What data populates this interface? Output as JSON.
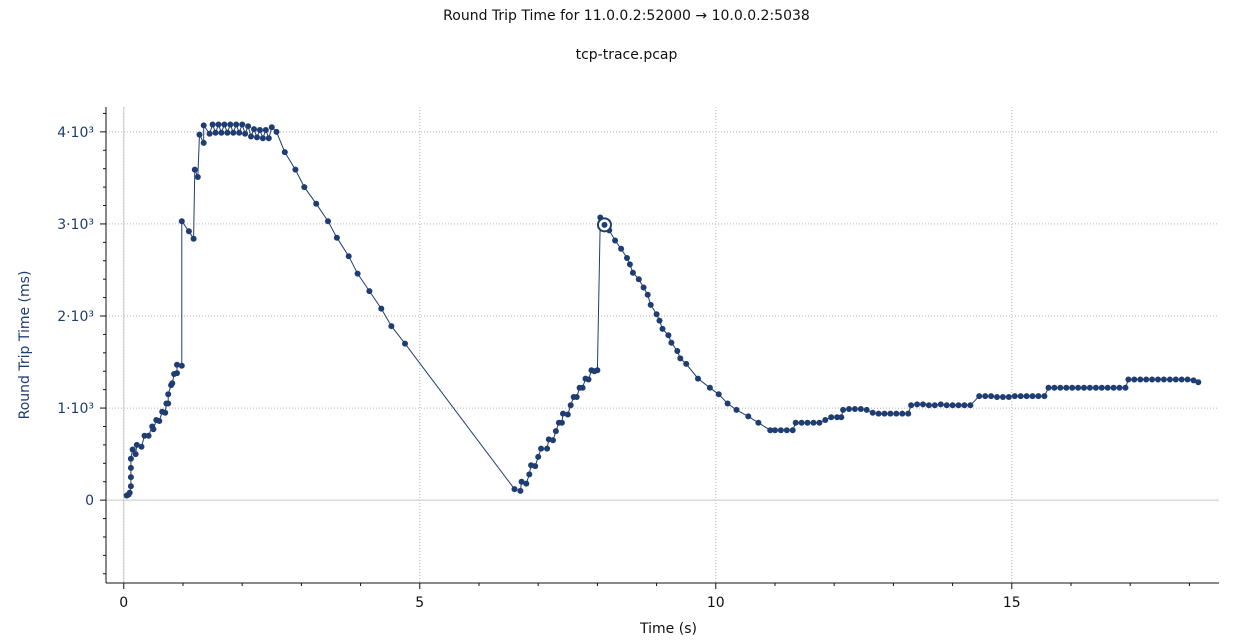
{
  "page": {
    "title": "Round Trip Time for 11.0.0.2:52000 → 10.0.0.2:5038",
    "subtitle": "tcp-trace.pcap"
  },
  "chart_data": {
    "type": "scatter",
    "xlabel": "Time (s)",
    "ylabel": "Round Trip Time (ms)",
    "xlim": [
      -0.3,
      18.5
    ],
    "ylim": [
      -900,
      4270
    ],
    "x_ticks": [
      {
        "value": 0,
        "label": "0"
      },
      {
        "value": 5,
        "label": "5"
      },
      {
        "value": 10,
        "label": "10"
      },
      {
        "value": 15,
        "label": "15"
      }
    ],
    "y_ticks": [
      {
        "value": 0,
        "label": "0"
      },
      {
        "value": 1000,
        "label": "1·10³"
      },
      {
        "value": 2000,
        "label": "2·10³"
      },
      {
        "value": 3000,
        "label": "3·10³"
      },
      {
        "value": 4000,
        "label": "4·10³"
      }
    ],
    "grid": true,
    "colors": {
      "series": "#1f3d73",
      "ytick": "#1f3d73",
      "axis": "#111111",
      "grid": "#b5b5b5"
    },
    "series": [
      {
        "points": [
          [
            0.05,
            50
          ],
          [
            0.08,
            60
          ],
          [
            0.1,
            80
          ],
          [
            0.12,
            150
          ],
          [
            0.12,
            250
          ],
          [
            0.12,
            350
          ],
          [
            0.12,
            450
          ],
          [
            0.15,
            550
          ],
          [
            0.2,
            500
          ],
          [
            0.22,
            600
          ],
          [
            0.3,
            580
          ],
          [
            0.35,
            700
          ],
          [
            0.42,
            700
          ],
          [
            0.48,
            800
          ],
          [
            0.5,
            770
          ],
          [
            0.55,
            870
          ],
          [
            0.6,
            860
          ],
          [
            0.65,
            960
          ],
          [
            0.7,
            950
          ],
          [
            0.72,
            1050
          ],
          [
            0.75,
            1050
          ],
          [
            0.75,
            1150
          ],
          [
            0.8,
            1250
          ],
          [
            0.82,
            1270
          ],
          [
            0.85,
            1370
          ],
          [
            0.9,
            1380
          ],
          [
            0.9,
            1470
          ],
          [
            0.98,
            1460
          ],
          [
            0.98,
            3030
          ],
          [
            1.1,
            2920
          ],
          [
            1.18,
            2840
          ],
          [
            1.2,
            3590
          ],
          [
            1.25,
            3510
          ],
          [
            1.28,
            3970
          ],
          [
            1.35,
            3880
          ],
          [
            1.35,
            4070
          ],
          [
            1.45,
            3980
          ],
          [
            1.5,
            4080
          ],
          [
            1.55,
            3990
          ],
          [
            1.6,
            4080
          ],
          [
            1.65,
            3990
          ],
          [
            1.7,
            4080
          ],
          [
            1.75,
            3990
          ],
          [
            1.8,
            4080
          ],
          [
            1.85,
            3990
          ],
          [
            1.9,
            4080
          ],
          [
            1.95,
            3990
          ],
          [
            2.0,
            4080
          ],
          [
            2.05,
            3980
          ],
          [
            2.1,
            4060
          ],
          [
            2.15,
            3950
          ],
          [
            2.2,
            4030
          ],
          [
            2.25,
            3940
          ],
          [
            2.3,
            4020
          ],
          [
            2.35,
            3930
          ],
          [
            2.4,
            4020
          ],
          [
            2.45,
            3930
          ],
          [
            2.5,
            4050
          ],
          [
            2.58,
            4000
          ],
          [
            2.72,
            3780
          ],
          [
            2.9,
            3590
          ],
          [
            3.05,
            3400
          ],
          [
            3.25,
            3220
          ],
          [
            3.45,
            3030
          ],
          [
            3.6,
            2850
          ],
          [
            3.8,
            2650
          ],
          [
            3.95,
            2460
          ],
          [
            4.15,
            2270
          ],
          [
            4.35,
            2080
          ],
          [
            4.52,
            1890
          ],
          [
            4.75,
            1700
          ],
          [
            6.6,
            120
          ],
          [
            6.7,
            100
          ],
          [
            6.72,
            200
          ],
          [
            6.8,
            180
          ],
          [
            6.85,
            280
          ],
          [
            6.88,
            380
          ],
          [
            6.95,
            370
          ],
          [
            7.0,
            470
          ],
          [
            7.05,
            560
          ],
          [
            7.15,
            560
          ],
          [
            7.18,
            660
          ],
          [
            7.25,
            650
          ],
          [
            7.3,
            750
          ],
          [
            7.35,
            840
          ],
          [
            7.4,
            840
          ],
          [
            7.42,
            940
          ],
          [
            7.5,
            930
          ],
          [
            7.55,
            1030
          ],
          [
            7.6,
            1120
          ],
          [
            7.65,
            1120
          ],
          [
            7.7,
            1220
          ],
          [
            7.75,
            1220
          ],
          [
            7.8,
            1320
          ],
          [
            7.85,
            1310
          ],
          [
            7.9,
            1410
          ],
          [
            7.95,
            1400
          ],
          [
            8.0,
            1410
          ],
          [
            8.05,
            3070
          ],
          [
            8.12,
            2990
          ],
          [
            8.2,
            2930
          ],
          [
            8.3,
            2820
          ],
          [
            8.4,
            2730
          ],
          [
            8.5,
            2630
          ],
          [
            8.55,
            2560
          ],
          [
            8.6,
            2470
          ],
          [
            8.7,
            2400
          ],
          [
            8.78,
            2310
          ],
          [
            8.85,
            2230
          ],
          [
            8.9,
            2120
          ],
          [
            9.0,
            2020
          ],
          [
            9.05,
            1950
          ],
          [
            9.1,
            1860
          ],
          [
            9.2,
            1790
          ],
          [
            9.25,
            1710
          ],
          [
            9.35,
            1620
          ],
          [
            9.4,
            1540
          ],
          [
            9.5,
            1480
          ],
          [
            9.7,
            1320
          ],
          [
            9.9,
            1220
          ],
          [
            10.05,
            1150
          ],
          [
            10.2,
            1050
          ],
          [
            10.35,
            980
          ],
          [
            10.55,
            910
          ],
          [
            10.72,
            840
          ],
          [
            10.92,
            760
          ],
          [
            11.0,
            760
          ],
          [
            11.1,
            760
          ],
          [
            11.2,
            760
          ],
          [
            11.3,
            760
          ],
          [
            11.35,
            840
          ],
          [
            11.45,
            840
          ],
          [
            11.55,
            840
          ],
          [
            11.65,
            840
          ],
          [
            11.75,
            840
          ],
          [
            11.85,
            870
          ],
          [
            11.95,
            900
          ],
          [
            12.05,
            900
          ],
          [
            12.12,
            900
          ],
          [
            12.15,
            980
          ],
          [
            12.25,
            990
          ],
          [
            12.35,
            990
          ],
          [
            12.45,
            990
          ],
          [
            12.55,
            980
          ],
          [
            12.65,
            950
          ],
          [
            12.75,
            940
          ],
          [
            12.85,
            940
          ],
          [
            12.95,
            940
          ],
          [
            13.05,
            940
          ],
          [
            13.15,
            940
          ],
          [
            13.25,
            940
          ],
          [
            13.3,
            1030
          ],
          [
            13.4,
            1040
          ],
          [
            13.5,
            1040
          ],
          [
            13.6,
            1030
          ],
          [
            13.7,
            1030
          ],
          [
            13.8,
            1040
          ],
          [
            13.9,
            1030
          ],
          [
            14.0,
            1030
          ],
          [
            14.1,
            1030
          ],
          [
            14.2,
            1030
          ],
          [
            14.3,
            1030
          ],
          [
            14.45,
            1130
          ],
          [
            14.55,
            1130
          ],
          [
            14.65,
            1130
          ],
          [
            14.75,
            1120
          ],
          [
            14.85,
            1120
          ],
          [
            14.95,
            1120
          ],
          [
            15.05,
            1130
          ],
          [
            15.15,
            1130
          ],
          [
            15.25,
            1130
          ],
          [
            15.35,
            1130
          ],
          [
            15.45,
            1130
          ],
          [
            15.55,
            1130
          ],
          [
            15.62,
            1220
          ],
          [
            15.72,
            1220
          ],
          [
            15.82,
            1220
          ],
          [
            15.92,
            1220
          ],
          [
            16.02,
            1220
          ],
          [
            16.12,
            1220
          ],
          [
            16.22,
            1220
          ],
          [
            16.32,
            1220
          ],
          [
            16.42,
            1220
          ],
          [
            16.52,
            1220
          ],
          [
            16.62,
            1220
          ],
          [
            16.72,
            1220
          ],
          [
            16.82,
            1220
          ],
          [
            16.92,
            1220
          ],
          [
            16.97,
            1310
          ],
          [
            17.07,
            1310
          ],
          [
            17.17,
            1310
          ],
          [
            17.27,
            1310
          ],
          [
            17.37,
            1310
          ],
          [
            17.47,
            1310
          ],
          [
            17.57,
            1310
          ],
          [
            17.67,
            1310
          ],
          [
            17.77,
            1310
          ],
          [
            17.87,
            1310
          ],
          [
            17.97,
            1310
          ],
          [
            18.07,
            1300
          ],
          [
            18.15,
            1280
          ]
        ],
        "highlight": [
          8.12,
          2990
        ]
      }
    ]
  }
}
